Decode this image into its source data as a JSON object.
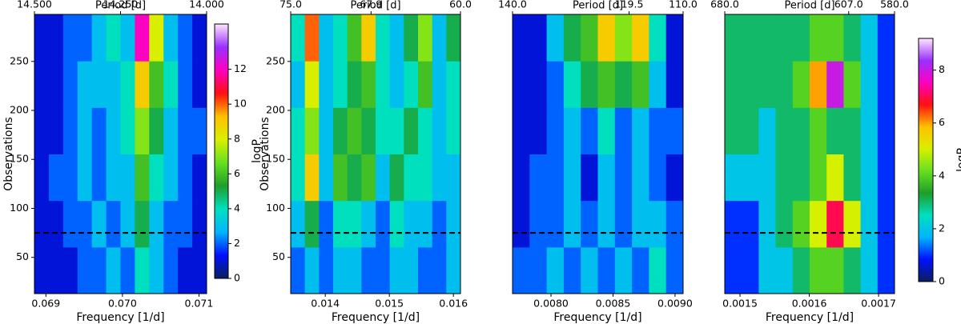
{
  "chart_data": [
    {
      "type": "heatmap",
      "xlabel": "Frequency [1/d]",
      "x2label": "Period [d]",
      "ylabel": "Observations",
      "xlim": [
        0.06885,
        0.0711
      ],
      "xticks": [
        {
          "value": 0.069,
          "label": "0.069"
        },
        {
          "value": 0.07,
          "label": "0.070"
        },
        {
          "value": 0.071,
          "label": "0.071"
        }
      ],
      "x2lim": [
        14.5,
        14.0
      ],
      "x2ticks": [
        {
          "value": 14.5,
          "label": "14.500"
        },
        {
          "value": 14.25,
          "label": "14.250"
        },
        {
          "value": 14.0,
          "label": "14.000"
        }
      ],
      "ylim": [
        13,
        298
      ],
      "yticks": [
        50,
        100,
        150,
        200,
        250
      ],
      "hline": 75,
      "colormap": [
        "#0a1f5c",
        "#0010ff",
        "#00b4ff",
        "#00e0c0",
        "#1e9e2a",
        "#66e020",
        "#d8f000",
        "#ffc000",
        "#ff1010",
        "#ff00c0",
        "#9a30ff",
        "#ffe6ff"
      ],
      "zlim": [
        0,
        14.6
      ],
      "z": [
        [
          1,
          1,
          1,
          2,
          2,
          3,
          2,
          4,
          3,
          2,
          1,
          1
        ],
        [
          1,
          1,
          2,
          2,
          3,
          2,
          3,
          5,
          3,
          2,
          2,
          1
        ],
        [
          1,
          2,
          2,
          3,
          2,
          3,
          3,
          6,
          4,
          3,
          2,
          1
        ],
        [
          1,
          1,
          2,
          3,
          2,
          3,
          4,
          7,
          5,
          3,
          2,
          2
        ],
        [
          1,
          1,
          2,
          3,
          3,
          3,
          4,
          9,
          6,
          4,
          2,
          1
        ],
        [
          1,
          1,
          2,
          2,
          3,
          4,
          3,
          12,
          8,
          3,
          2,
          1
        ]
      ],
      "colorbar": {
        "label": "logP",
        "lim": [
          0,
          14.6
        ],
        "ticks": [
          0,
          2,
          4,
          6,
          8,
          10,
          12
        ]
      }
    },
    {
      "type": "heatmap",
      "xlabel": "Frequency [1/d]",
      "x2label": "Period [d]",
      "ylabel": "Observations",
      "xlim": [
        0.01346,
        0.01611
      ],
      "xticks": [
        {
          "value": 0.014,
          "label": "0.014"
        },
        {
          "value": 0.015,
          "label": "0.015"
        },
        {
          "value": 0.016,
          "label": "0.016"
        }
      ],
      "x2lim": [
        75,
        60
      ],
      "x2ticks": [
        {
          "value": 75,
          "label": "75.0"
        },
        {
          "value": 67.9,
          "label": "67.9"
        },
        {
          "value": 60,
          "label": "60.0"
        }
      ],
      "ylim": [
        13,
        298
      ],
      "yticks": [
        50,
        100,
        150,
        200,
        250
      ],
      "hline": 75,
      "colormap": [
        "#0a1f5c",
        "#0010ff",
        "#00b4ff",
        "#00e0c0",
        "#1e9e2a",
        "#66e020",
        "#d8f000",
        "#ffc000",
        "#ff1010",
        "#ff00c0",
        "#9a30ff",
        "#ffe6ff"
      ],
      "zlim": [
        0,
        14.6
      ],
      "z": [
        [
          2,
          3,
          2,
          3,
          3,
          2,
          2,
          3,
          3,
          2,
          2,
          3
        ],
        [
          3,
          5,
          2,
          4,
          4,
          3,
          2,
          4,
          3,
          3,
          2,
          3
        ],
        [
          4,
          9,
          3,
          6,
          5,
          6,
          3,
          5,
          4,
          4,
          3,
          3
        ],
        [
          4,
          7,
          3,
          5,
          6,
          5,
          4,
          4,
          5,
          4,
          3,
          4
        ],
        [
          3,
          8,
          3,
          4,
          5,
          6,
          4,
          3,
          4,
          6,
          3,
          4
        ],
        [
          4,
          10,
          3,
          4,
          6,
          9,
          4,
          3,
          5,
          7,
          3,
          5
        ]
      ]
    },
    {
      "type": "heatmap",
      "xlabel": "Frequency [1/d]",
      "x2label": "Period [d]",
      "xlim": [
        0.00769,
        0.009065
      ],
      "xticks": [
        {
          "value": 0.008,
          "label": "0.0080"
        },
        {
          "value": 0.0085,
          "label": "0.0085"
        },
        {
          "value": 0.009,
          "label": "0.0090"
        }
      ],
      "x2lim": [
        140,
        110
      ],
      "x2ticks": [
        {
          "value": 140,
          "label": "140.0"
        },
        {
          "value": 119.5,
          "label": "119.5"
        },
        {
          "value": 110,
          "label": "110.0"
        }
      ],
      "ylim": [
        13,
        298
      ],
      "hline": 75,
      "colormap": [
        "#0a1f5c",
        "#0010ff",
        "#00b4ff",
        "#00e0c0",
        "#1e9e2a",
        "#66e020",
        "#d8f000",
        "#ffc000",
        "#ff1010",
        "#ff00c0",
        "#9a30ff",
        "#ffe6ff"
      ],
      "zlim": [
        0,
        14.6
      ],
      "z": [
        [
          2,
          2,
          3,
          2,
          3,
          2,
          3,
          2,
          4,
          2
        ],
        [
          1,
          2,
          2,
          3,
          2,
          3,
          2,
          3,
          3,
          2
        ],
        [
          1,
          2,
          2,
          3,
          1,
          3,
          2,
          3,
          2,
          1
        ],
        [
          1,
          1,
          2,
          3,
          2,
          4,
          2,
          3,
          2,
          2
        ],
        [
          1,
          1,
          2,
          4,
          5,
          6,
          5,
          6,
          3,
          1
        ],
        [
          1,
          1,
          3,
          5,
          6,
          9,
          7,
          9,
          4,
          1
        ]
      ]
    },
    {
      "type": "heatmap",
      "xlabel": "Frequency [1/d]",
      "x2label": "Period [d]",
      "xlim": [
        0.001478,
        0.001723
      ],
      "xticks": [
        {
          "value": 0.0015,
          "label": "0.0015"
        },
        {
          "value": 0.0016,
          "label": "0.0016"
        },
        {
          "value": 0.0017,
          "label": "0.0017"
        }
      ],
      "x2lim": [
        680,
        580
      ],
      "x2ticks": [
        {
          "value": 680,
          "label": "680.0"
        },
        {
          "value": 607,
          "label": "607.0"
        },
        {
          "value": 580,
          "label": "580.0"
        }
      ],
      "ylim": [
        13,
        298
      ],
      "hline": 75,
      "colormap": [
        "#0a1f5c",
        "#0010ff",
        "#00b4ff",
        "#00e0c0",
        "#1e9e2a",
        "#66e020",
        "#d8f000",
        "#ffc000",
        "#ff1010",
        "#ff00c0",
        "#9a30ff",
        "#ffe6ff"
      ],
      "zlim": [
        0,
        9.2
      ],
      "z": [
        [
          1,
          1,
          2,
          2,
          3,
          4,
          4,
          3,
          2,
          1
        ],
        [
          1,
          1,
          2,
          3,
          4,
          5,
          7,
          5,
          2,
          1
        ],
        [
          2,
          2,
          2,
          3,
          3,
          4,
          5,
          3,
          2,
          1
        ],
        [
          3,
          3,
          2,
          3,
          3,
          4,
          3,
          3,
          2,
          1
        ],
        [
          3,
          3,
          3,
          3,
          4,
          6,
          8,
          4,
          2,
          1
        ],
        [
          3,
          3,
          3,
          3,
          3,
          4,
          4,
          3,
          2,
          1
        ]
      ],
      "colorbar": {
        "label": "logP",
        "lim": [
          0,
          9.2
        ],
        "ticks": [
          0,
          2,
          4,
          6,
          8
        ]
      }
    }
  ]
}
